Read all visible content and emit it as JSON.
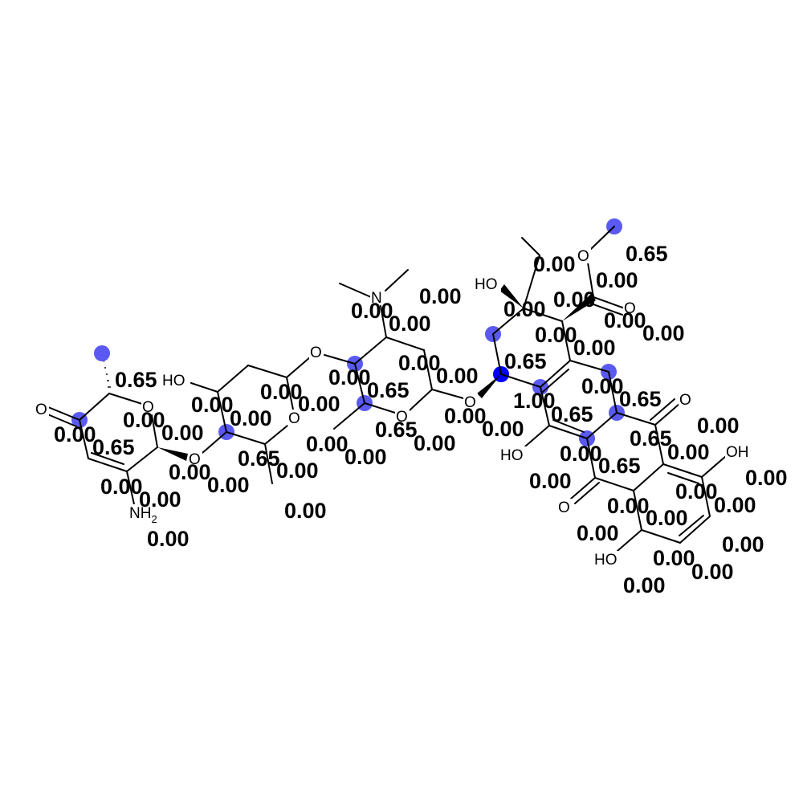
{
  "colors": {
    "highlight_max": "#0000ff",
    "highlight_mid": "#5a5af2",
    "bond": "#000000",
    "background": "#ffffff"
  },
  "atom_labels": {
    "o_ketone_left": "O",
    "o_ring1": "O",
    "o_link12": "O",
    "nh2": "NH",
    "nh2_sub": "2",
    "ho_ring2": "HO",
    "o_ring2": "O",
    "o_link23": "O",
    "n_dimethyl": "N",
    "o_ring3": "O",
    "o_link34": "O",
    "ho_ring4": "HO",
    "o_ester_single": "O",
    "o_ester_double": "O",
    "ho_aromatic_left": "HO",
    "o_quinone_top": "O",
    "oh_right": "OH",
    "o_quinone_bottom": "O",
    "ho_bottom": "HO"
  },
  "scores": [
    "0.65",
    "0.00",
    "0.65",
    "0.00",
    "0.00",
    "0.00",
    "0.00",
    "0.00",
    "0.00",
    "0.00",
    "0.00",
    "0.00",
    "0.00",
    "0.00",
    "0.65",
    "0.00",
    "0.00",
    "0.00",
    "0.00",
    "0.00",
    "0.65",
    "0.65",
    "0.00",
    "0.00",
    "0.00",
    "0.00",
    "0.00",
    "0.00",
    "0.00",
    "0.00",
    "0.00",
    "0.65",
    "0.00",
    "0.00",
    "0.00",
    "0.00",
    "0.00",
    "0.00",
    "0.65",
    "1.00",
    "0.65",
    "0.00",
    "0.65",
    "0.65",
    "0.00",
    "0.00",
    "0.00",
    "0.65",
    "0.00",
    "0.00",
    "0.00",
    "0.00",
    "0.00",
    "0.00",
    "0.00",
    "0.00",
    "0.00",
    "0.00",
    "0.00",
    "0.00"
  ]
}
